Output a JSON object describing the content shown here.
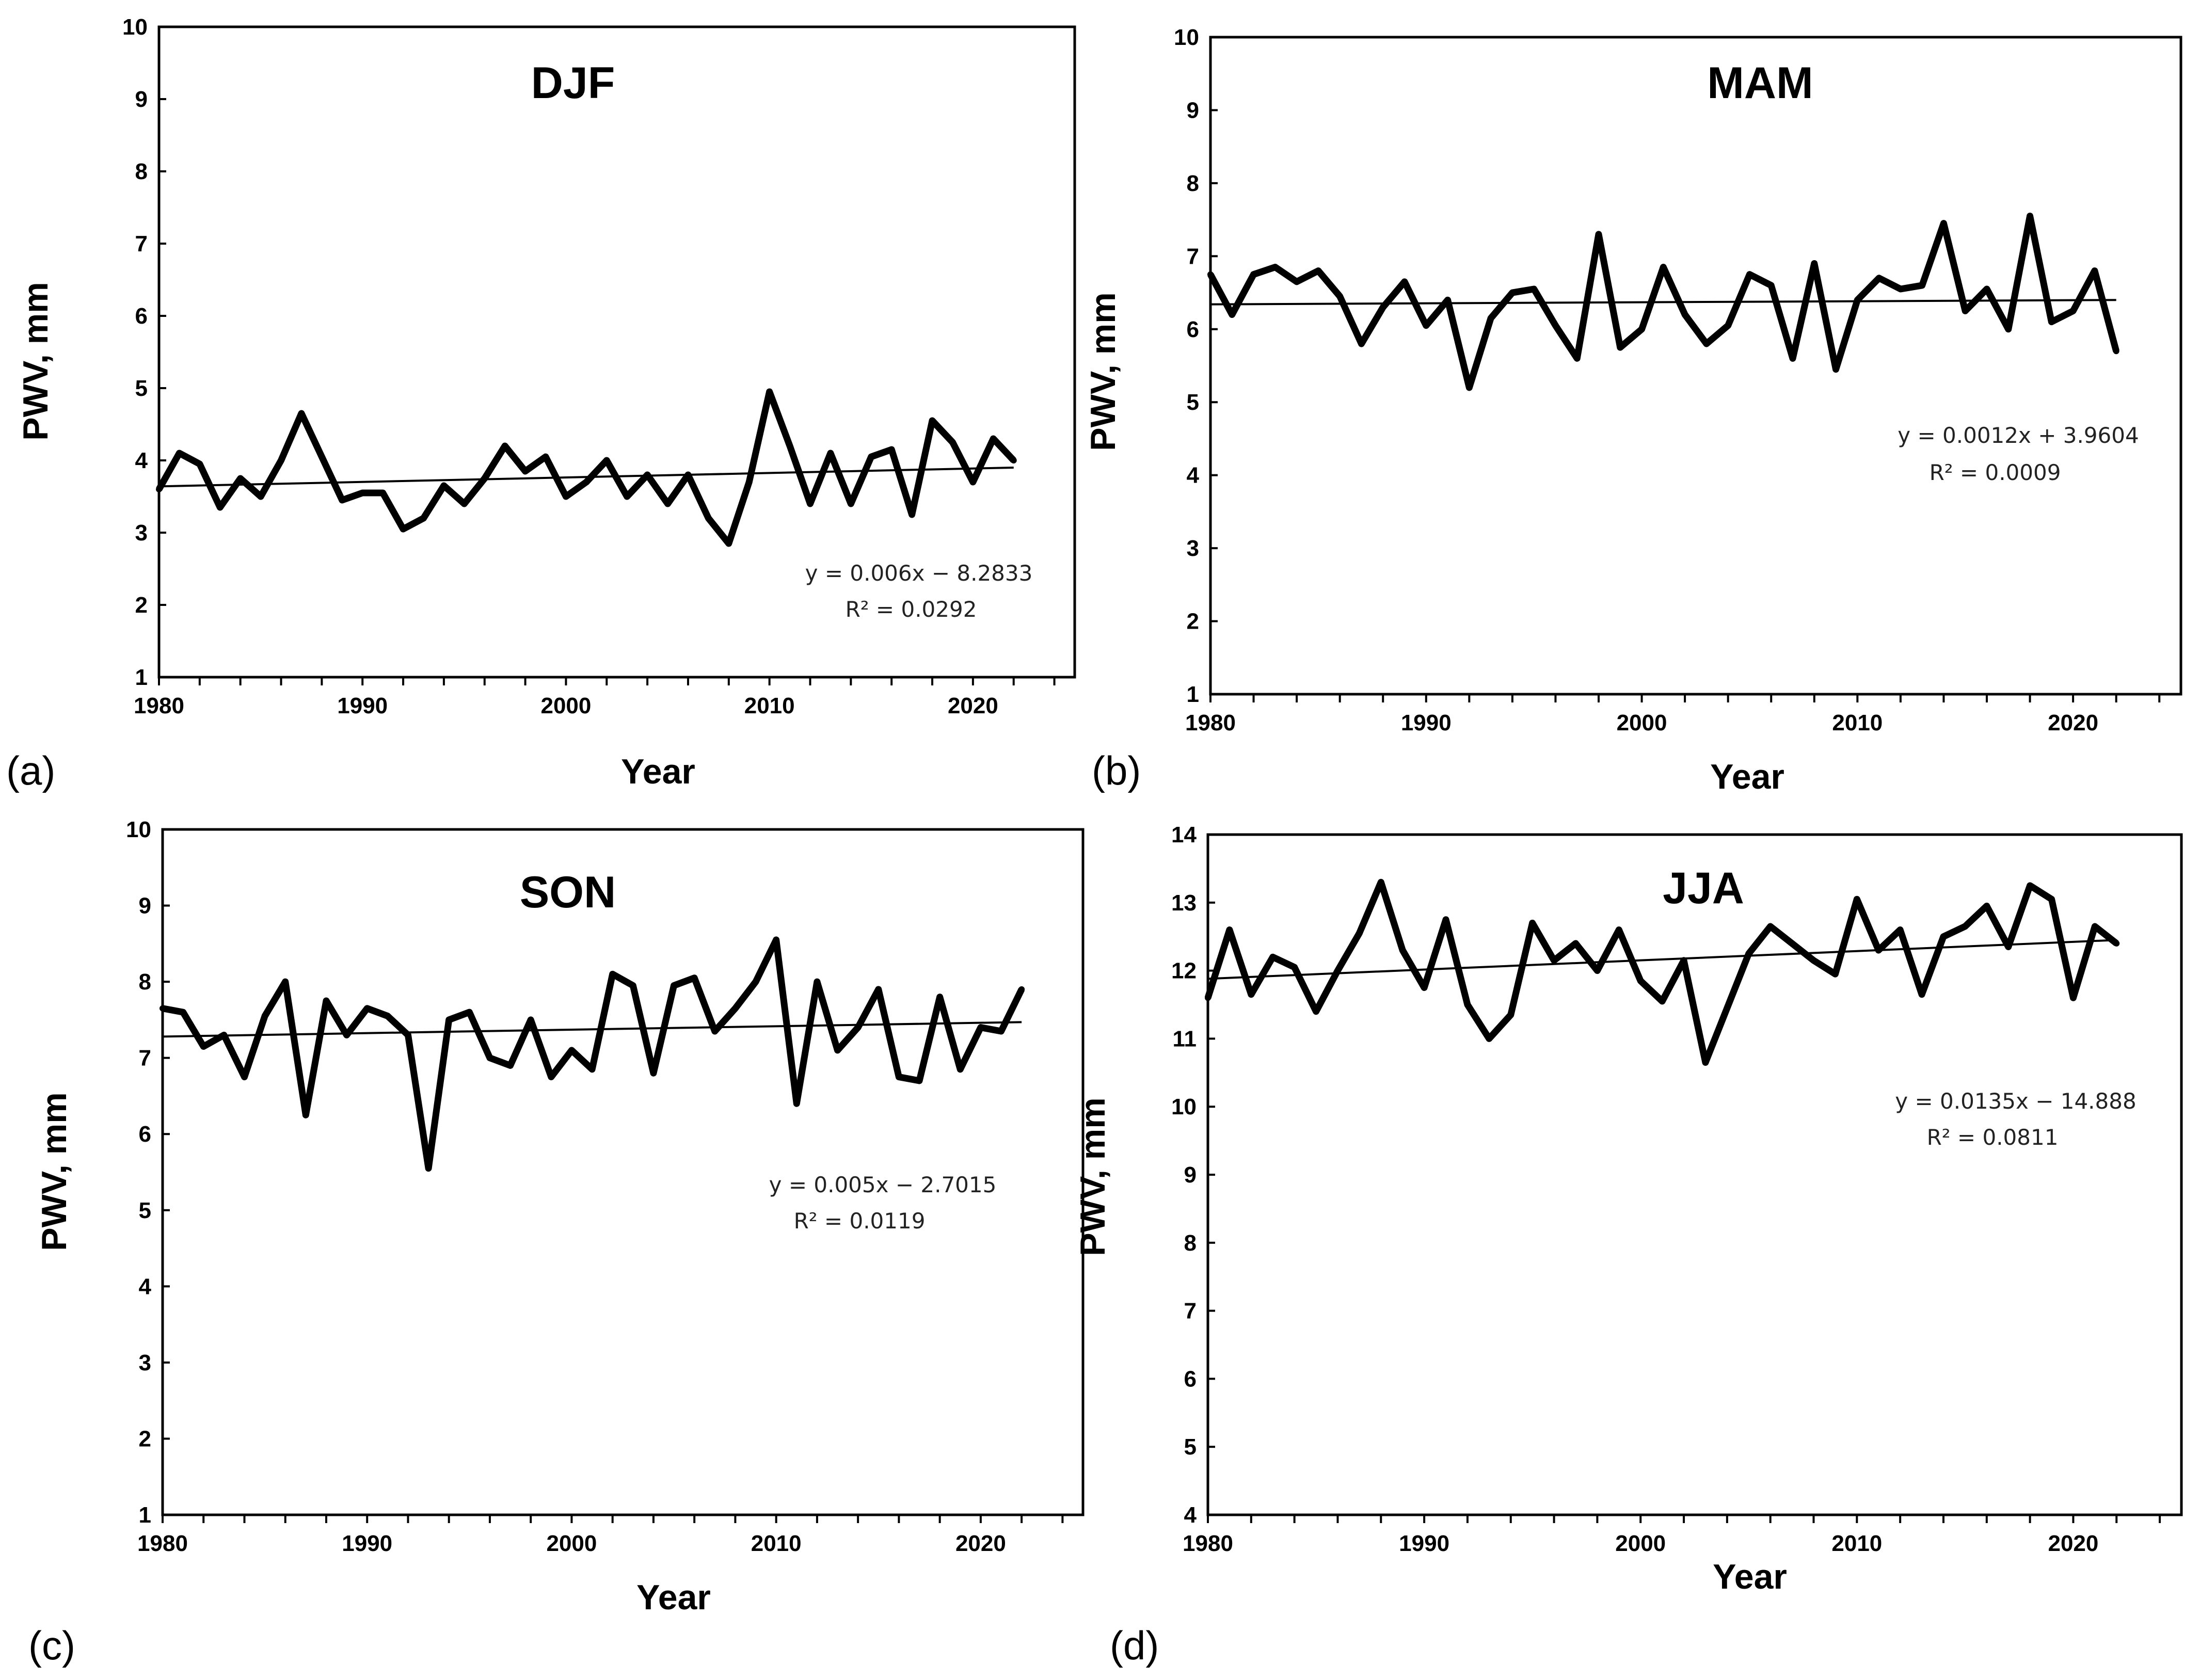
{
  "chart_data": [
    {
      "type": "line",
      "label": "(a)",
      "title": "DJF",
      "xlabel": "Year",
      "ylabel": "PWV, mm",
      "xlim": [
        1980,
        2025
      ],
      "ylim": [
        1,
        10
      ],
      "xticks": [
        "1980",
        "1990",
        "2000",
        "2010",
        "2020"
      ],
      "yticks": [
        "1",
        "2",
        "3",
        "4",
        "5",
        "6",
        "7",
        "8",
        "9",
        "10"
      ],
      "x": [
        1980,
        1981,
        1982,
        1983,
        1984,
        1985,
        1986,
        1987,
        1988,
        1989,
        1990,
        1991,
        1992,
        1993,
        1994,
        1995,
        1996,
        1997,
        1998,
        1999,
        2000,
        2001,
        2002,
        2003,
        2004,
        2005,
        2006,
        2007,
        2008,
        2009,
        2010,
        2011,
        2012,
        2013,
        2014,
        2015,
        2016,
        2017,
        2018,
        2019,
        2020,
        2021,
        2022
      ],
      "series": [
        {
          "name": "PWV",
          "values": [
            3.6,
            4.1,
            3.95,
            3.35,
            3.75,
            3.5,
            4.0,
            4.65,
            4.05,
            3.45,
            3.55,
            3.55,
            3.05,
            3.2,
            3.65,
            3.4,
            3.75,
            4.2,
            3.85,
            4.05,
            3.5,
            3.7,
            4.0,
            3.5,
            3.8,
            3.4,
            3.8,
            3.2,
            2.85,
            3.7,
            4.95,
            4.2,
            3.4,
            4.1,
            3.4,
            4.05,
            4.15,
            3.25,
            4.55,
            4.25,
            3.7,
            4.3,
            4.0
          ]
        }
      ],
      "trend": {
        "start": [
          1980,
          3.64
        ],
        "end": [
          2022,
          3.9
        ]
      },
      "equation": "y = 0.006x − 8.2833",
      "r2": "R² = 0.0292"
    },
    {
      "type": "line",
      "label": "(b)",
      "title": "MAM",
      "xlabel": "Year",
      "ylabel": "PWV, mm",
      "xlim": [
        1980,
        2025
      ],
      "ylim": [
        1,
        10
      ],
      "xticks": [
        "1980",
        "1990",
        "2000",
        "2010",
        "2020"
      ],
      "yticks": [
        "1",
        "2",
        "3",
        "4",
        "5",
        "6",
        "7",
        "8",
        "9",
        "10"
      ],
      "x": [
        1980,
        1981,
        1982,
        1983,
        1984,
        1985,
        1986,
        1987,
        1988,
        1989,
        1990,
        1991,
        1992,
        1993,
        1994,
        1995,
        1996,
        1997,
        1998,
        1999,
        2000,
        2001,
        2002,
        2003,
        2004,
        2005,
        2006,
        2007,
        2008,
        2009,
        2010,
        2011,
        2012,
        2013,
        2014,
        2015,
        2016,
        2017,
        2018,
        2019,
        2020,
        2021,
        2022
      ],
      "series": [
        {
          "name": "PWV",
          "values": [
            6.75,
            6.2,
            6.75,
            6.85,
            6.65,
            6.8,
            6.45,
            5.8,
            6.3,
            6.65,
            6.05,
            6.4,
            5.2,
            6.15,
            6.5,
            6.55,
            6.05,
            5.6,
            7.3,
            5.75,
            6.0,
            6.85,
            6.2,
            5.8,
            6.05,
            6.75,
            6.6,
            5.6,
            6.9,
            5.45,
            6.4,
            6.7,
            6.55,
            6.6,
            7.45,
            6.25,
            6.55,
            6.0,
            7.55,
            6.1,
            6.25,
            6.8,
            5.7
          ]
        }
      ],
      "trend": {
        "start": [
          1980,
          6.34
        ],
        "end": [
          2022,
          6.4
        ]
      },
      "equation": "y = 0.0012x + 3.9604",
      "r2": "R² = 0.0009"
    },
    {
      "type": "line",
      "label": "(c)",
      "title": "SON",
      "xlabel": "Year",
      "ylabel": "PWV, mm",
      "xlim": [
        1980,
        2025
      ],
      "ylim": [
        1,
        10
      ],
      "xticks": [
        "1980",
        "1990",
        "2000",
        "2010",
        "2020"
      ],
      "yticks": [
        "1",
        "2",
        "3",
        "4",
        "5",
        "6",
        "7",
        "8",
        "9",
        "10"
      ],
      "x": [
        1980,
        1981,
        1982,
        1983,
        1984,
        1985,
        1986,
        1987,
        1988,
        1989,
        1990,
        1991,
        1992,
        1993,
        1994,
        1995,
        1996,
        1997,
        1998,
        1999,
        2000,
        2001,
        2002,
        2003,
        2004,
        2005,
        2006,
        2007,
        2008,
        2009,
        2010,
        2011,
        2012,
        2013,
        2014,
        2015,
        2016,
        2017,
        2018,
        2019,
        2020,
        2021,
        2022
      ],
      "series": [
        {
          "name": "PWV",
          "values": [
            7.65,
            7.6,
            7.15,
            7.3,
            6.75,
            7.55,
            8.0,
            6.25,
            7.75,
            7.3,
            7.65,
            7.55,
            7.3,
            5.55,
            7.5,
            7.6,
            7.0,
            6.9,
            7.5,
            6.75,
            7.1,
            6.85,
            8.1,
            7.95,
            6.8,
            7.95,
            8.05,
            7.35,
            7.65,
            8.0,
            8.55,
            6.4,
            8.0,
            7.1,
            7.4,
            7.9,
            6.75,
            6.7,
            7.8,
            6.85,
            7.4,
            7.35,
            7.9
          ]
        }
      ],
      "trend": {
        "start": [
          1980,
          7.28
        ],
        "end": [
          2022,
          7.47
        ]
      },
      "equation": "y = 0.005x − 2.7015",
      "r2": "R² = 0.0119"
    },
    {
      "type": "line",
      "label": "(d)",
      "title": "JJA",
      "xlabel": "Year",
      "ylabel": "PWV, mm",
      "xlim": [
        1980,
        2025
      ],
      "ylim": [
        4,
        14
      ],
      "xticks": [
        "1980",
        "1990",
        "2000",
        "2010",
        "2020"
      ],
      "yticks": [
        "4",
        "5",
        "6",
        "7",
        "8",
        "9",
        "10",
        "11",
        "12",
        "13",
        "14"
      ],
      "x": [
        1980,
        1981,
        1982,
        1983,
        1984,
        1985,
        1986,
        1987,
        1988,
        1989,
        1990,
        1991,
        1992,
        1993,
        1994,
        1995,
        1996,
        1997,
        1998,
        1999,
        2000,
        2001,
        2002,
        2003,
        2004,
        2005,
        2006,
        2007,
        2008,
        2009,
        2010,
        2011,
        2012,
        2013,
        2014,
        2015,
        2016,
        2017,
        2018,
        2019,
        2020,
        2021,
        2022
      ],
      "series": [
        {
          "name": "PWV",
          "values": [
            11.6,
            12.6,
            11.65,
            12.2,
            12.05,
            11.4,
            12.0,
            12.55,
            13.3,
            12.3,
            11.75,
            12.75,
            11.5,
            11.0,
            11.35,
            12.7,
            12.15,
            12.4,
            12.0,
            12.6,
            11.85,
            11.55,
            12.15,
            10.65,
            11.45,
            12.25,
            12.65,
            12.4,
            12.15,
            11.95,
            13.05,
            12.3,
            12.6,
            11.65,
            12.5,
            12.65,
            12.95,
            12.35,
            13.25,
            13.05,
            11.6,
            12.65,
            12.4
          ]
        }
      ],
      "trend": {
        "start": [
          1980,
          11.88
        ],
        "end": [
          2022,
          12.45
        ]
      },
      "equation": "y = 0.0135x − 14.888",
      "r2": "R² = 0.0811"
    }
  ]
}
